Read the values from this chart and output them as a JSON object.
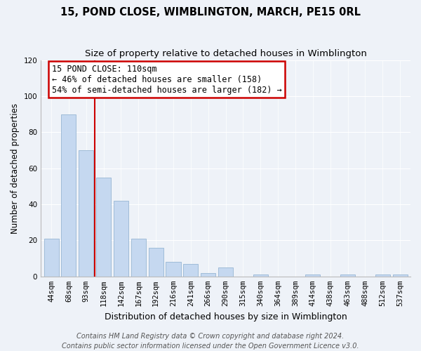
{
  "title": "15, POND CLOSE, WIMBLINGTON, MARCH, PE15 0RL",
  "subtitle": "Size of property relative to detached houses in Wimblington",
  "xlabel": "Distribution of detached houses by size in Wimblington",
  "ylabel": "Number of detached properties",
  "bar_labels": [
    "44sqm",
    "68sqm",
    "93sqm",
    "118sqm",
    "142sqm",
    "167sqm",
    "192sqm",
    "216sqm",
    "241sqm",
    "266sqm",
    "290sqm",
    "315sqm",
    "340sqm",
    "364sqm",
    "389sqm",
    "414sqm",
    "438sqm",
    "463sqm",
    "488sqm",
    "512sqm",
    "537sqm"
  ],
  "bar_values": [
    21,
    90,
    70,
    55,
    42,
    21,
    16,
    8,
    7,
    2,
    5,
    0,
    1,
    0,
    0,
    1,
    0,
    1,
    0,
    1,
    1
  ],
  "bar_color": "#c5d8f0",
  "bar_edge_color": "#a0bcd8",
  "vline_x_index": 3,
  "vline_color": "#cc0000",
  "annotation_line1": "15 POND CLOSE: 110sqm",
  "annotation_line2": "← 46% of detached houses are smaller (158)",
  "annotation_line3": "54% of semi-detached houses are larger (182) →",
  "annotation_box_color": "#ffffff",
  "annotation_box_edge": "#cc0000",
  "ylim": [
    0,
    120
  ],
  "yticks": [
    0,
    20,
    40,
    60,
    80,
    100,
    120
  ],
  "footer_text": "Contains HM Land Registry data © Crown copyright and database right 2024.\nContains public sector information licensed under the Open Government Licence v3.0.",
  "background_color": "#eef2f8",
  "plot_background": "#eef2f8",
  "title_fontsize": 10.5,
  "subtitle_fontsize": 9.5,
  "xlabel_fontsize": 9,
  "ylabel_fontsize": 8.5,
  "tick_fontsize": 7.5,
  "annot_fontsize": 8.5,
  "footer_fontsize": 7
}
